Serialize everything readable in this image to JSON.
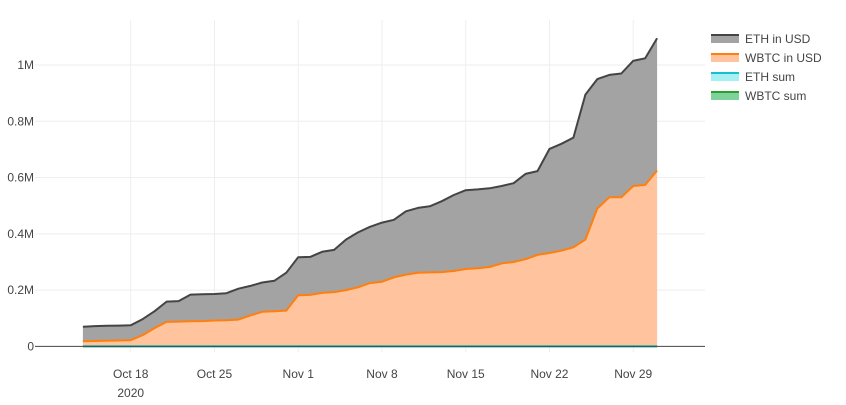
{
  "chart_data": {
    "type": "area",
    "stacked": true,
    "title": "",
    "xlabel": "",
    "ylabel": "",
    "x_dates": [
      "2020-10-14",
      "2020-10-15",
      "2020-10-16",
      "2020-10-17",
      "2020-10-18",
      "2020-10-19",
      "2020-10-20",
      "2020-10-21",
      "2020-10-22",
      "2020-10-23",
      "2020-10-24",
      "2020-10-25",
      "2020-10-26",
      "2020-10-27",
      "2020-10-28",
      "2020-10-29",
      "2020-10-30",
      "2020-10-31",
      "2020-11-01",
      "2020-11-02",
      "2020-11-03",
      "2020-11-04",
      "2020-11-05",
      "2020-11-06",
      "2020-11-07",
      "2020-11-08",
      "2020-11-09",
      "2020-11-10",
      "2020-11-11",
      "2020-11-12",
      "2020-11-13",
      "2020-11-14",
      "2020-11-15",
      "2020-11-16",
      "2020-11-17",
      "2020-11-18",
      "2020-11-19",
      "2020-11-20",
      "2020-11-21",
      "2020-11-22",
      "2020-11-23",
      "2020-11-24",
      "2020-11-25",
      "2020-11-26",
      "2020-11-27",
      "2020-11-28",
      "2020-11-29",
      "2020-11-30",
      "2020-12-01"
    ],
    "x_ticks": [
      {
        "date": "2020-10-18",
        "label": "Oct 18",
        "sublabel": "2020"
      },
      {
        "date": "2020-10-25",
        "label": "Oct 25",
        "sublabel": ""
      },
      {
        "date": "2020-11-01",
        "label": "Nov 1",
        "sublabel": ""
      },
      {
        "date": "2020-11-08",
        "label": "Nov 8",
        "sublabel": ""
      },
      {
        "date": "2020-11-15",
        "label": "Nov 15",
        "sublabel": ""
      },
      {
        "date": "2020-11-22",
        "label": "Nov 22",
        "sublabel": ""
      },
      {
        "date": "2020-11-29",
        "label": "Nov 29",
        "sublabel": ""
      }
    ],
    "y_ticks": [
      {
        "value": 0,
        "label": "0"
      },
      {
        "value": 200000,
        "label": "0.2M"
      },
      {
        "value": 400000,
        "label": "0.4M"
      },
      {
        "value": 600000,
        "label": "0.6M"
      },
      {
        "value": 800000,
        "label": "0.8M"
      },
      {
        "value": 1000000,
        "label": "1M"
      }
    ],
    "xlim": [
      "2020-10-10",
      "2020-12-05"
    ],
    "ylim": [
      -20000,
      1160000
    ],
    "grid": true,
    "legend_position": "top-right",
    "series": [
      {
        "name": "WBTC sum",
        "line_color": "#2ca02c",
        "fill_color": "#7fd39a",
        "values": [
          0,
          0,
          0,
          0,
          0,
          0,
          0,
          0,
          0,
          0,
          0,
          0,
          0,
          0,
          0,
          0,
          0,
          0,
          0,
          0,
          0,
          0,
          0,
          0,
          0,
          0,
          0,
          0,
          0,
          0,
          0,
          0,
          0,
          0,
          0,
          0,
          0,
          0,
          0,
          0,
          0,
          0,
          0,
          0,
          0,
          0,
          0,
          0,
          0
        ]
      },
      {
        "name": "ETH sum",
        "line_color": "#17becf",
        "fill_color": "#a6f0f4",
        "values": [
          0,
          0,
          0,
          0,
          0,
          0,
          0,
          0,
          0,
          0,
          0,
          0,
          0,
          0,
          0,
          0,
          0,
          0,
          0,
          0,
          0,
          0,
          0,
          0,
          0,
          0,
          0,
          0,
          0,
          0,
          0,
          0,
          0,
          0,
          0,
          0,
          0,
          0,
          0,
          0,
          0,
          0,
          0,
          0,
          0,
          0,
          0,
          0,
          0
        ]
      },
      {
        "name": "WBTC in USD",
        "line_color": "#ff7f0e",
        "fill_color": "#ffc49e",
        "values": [
          18000,
          19000,
          20000,
          21000,
          22000,
          40000,
          65000,
          87000,
          88000,
          89000,
          90000,
          92000,
          93000,
          95000,
          110000,
          123000,
          125000,
          127000,
          182000,
          183000,
          190000,
          193000,
          200000,
          210000,
          225000,
          230000,
          245000,
          255000,
          262000,
          263000,
          264000,
          268000,
          275000,
          278000,
          282000,
          295000,
          300000,
          310000,
          325000,
          332000,
          340000,
          352000,
          380000,
          490000,
          530000,
          530000,
          570000,
          574000,
          625000
        ]
      },
      {
        "name": "ETH in USD",
        "line_color": "#444444",
        "fill_color": "#a3a3a3",
        "values": [
          52000,
          53000,
          53000,
          53000,
          53000,
          57000,
          60000,
          72000,
          73000,
          95000,
          95000,
          94000,
          96000,
          110000,
          105000,
          104000,
          108000,
          135000,
          135000,
          135000,
          146000,
          150000,
          180000,
          195000,
          200000,
          210000,
          205000,
          225000,
          230000,
          235000,
          252000,
          270000,
          280000,
          280000,
          280000,
          275000,
          280000,
          303000,
          298000,
          370000,
          380000,
          390000,
          515000,
          460000,
          435000,
          440000,
          445000,
          450000,
          470000
        ]
      }
    ]
  },
  "legend": {
    "items": [
      {
        "label": "ETH in USD",
        "line_color": "#444444",
        "fill_color": "#a3a3a3"
      },
      {
        "label": "WBTC in USD",
        "line_color": "#ff7f0e",
        "fill_color": "#ffc49e"
      },
      {
        "label": "ETH sum",
        "line_color": "#17becf",
        "fill_color": "#a6f0f4"
      },
      {
        "label": "WBTC sum",
        "line_color": "#2ca02c",
        "fill_color": "#7fd39a"
      }
    ]
  }
}
